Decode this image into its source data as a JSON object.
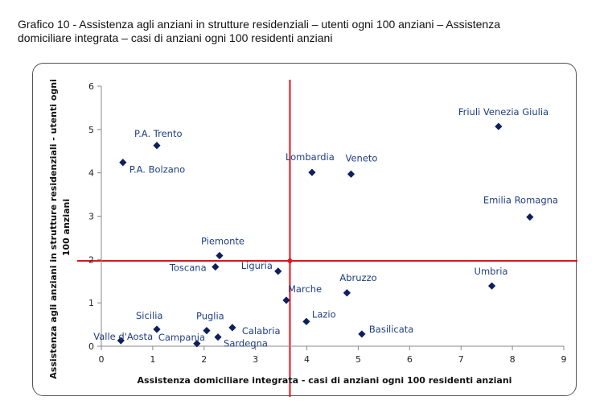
{
  "caption": {
    "line1": "Grafico 10 - Assistenza agli anziani in strutture residenziali – utenti ogni 100 anziani – Assistenza",
    "line2": "domiciliare integrata – casi di anziani ogni 100 residenti anziani"
  },
  "chart_data": {
    "type": "scatter",
    "xlabel": "Assistenza domiciliare integrata - casi di anziani ogni 100 residenti anziani",
    "ylabel_lines": [
      "Assistenza agli anziani in strutture residenziali - utenti ogni",
      "100 anziani"
    ],
    "xlim": [
      0,
      9
    ],
    "ylim": [
      0,
      6
    ],
    "x_ticks": [
      "0",
      "1",
      "2",
      "3",
      "4",
      "5",
      "6",
      "7",
      "8",
      "9"
    ],
    "y_ticks": [
      "0",
      "1",
      "2",
      "3",
      "4",
      "5",
      "6"
    ],
    "grid": false,
    "reference_lines": {
      "x": 3.67,
      "y": 1.97,
      "color": "#e0141b"
    },
    "marker_color": "#0d1f5c",
    "label_color": "#1f3f82",
    "points": [
      {
        "label": "Friuli Venezia Giulia",
        "x": 7.73,
        "y": 5.07
      },
      {
        "label": "P.A. Trento",
        "x": 1.08,
        "y": 4.63
      },
      {
        "label": "P.A. Bolzano",
        "x": 0.42,
        "y": 4.24
      },
      {
        "label": "Lombardia",
        "x": 4.1,
        "y": 4.01
      },
      {
        "label": "Veneto",
        "x": 4.86,
        "y": 3.97
      },
      {
        "label": "Emilia Romagna",
        "x": 8.34,
        "y": 2.98
      },
      {
        "label": "Piemonte",
        "x": 2.3,
        "y": 2.09
      },
      {
        "label": "Toscana",
        "x": 2.22,
        "y": 1.83
      },
      {
        "label": "Liguria",
        "x": 3.44,
        "y": 1.73
      },
      {
        "label": "Umbria",
        "x": 7.6,
        "y": 1.39
      },
      {
        "label": "Abruzzo",
        "x": 4.78,
        "y": 1.23
      },
      {
        "label": "Marche",
        "x": 3.6,
        "y": 1.06
      },
      {
        "label": "Lazio",
        "x": 3.99,
        "y": 0.57
      },
      {
        "label": "Basilicata",
        "x": 5.07,
        "y": 0.28
      },
      {
        "label": "Sicilia",
        "x": 1.08,
        "y": 0.39
      },
      {
        "label": "Puglia",
        "x": 2.05,
        "y": 0.36
      },
      {
        "label": "Calabria",
        "x": 2.55,
        "y": 0.43
      },
      {
        "label": "Valle d'Aosta",
        "x": 0.38,
        "y": 0.13
      },
      {
        "label": "Campania",
        "x": 1.86,
        "y": 0.06
      },
      {
        "label": "Sardegna",
        "x": 2.27,
        "y": 0.21
      }
    ]
  }
}
